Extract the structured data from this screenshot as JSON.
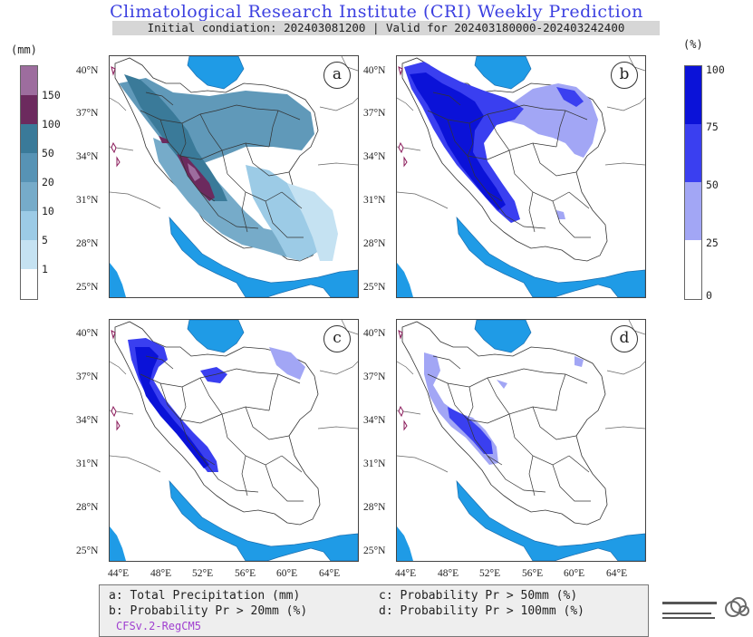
{
  "header": {
    "title": "Climatological Research Institute (CRI) Weekly Prediction",
    "subtitle": "Initial condiation: 202403081200 | Valid for 202403180000-202403242400"
  },
  "left_colorbar": {
    "unit": "(mm)",
    "ticks": [
      "150",
      "100",
      "50",
      "20",
      "10",
      "5",
      "1"
    ],
    "colors": [
      "#9d6d9e",
      "#6c2a5e",
      "#3a7a99",
      "#5793b5",
      "#76abc9",
      "#9ccbe6",
      "#c5e2f2",
      "#ffffff"
    ]
  },
  "right_colorbar": {
    "unit": "(%)",
    "ticks": [
      "100",
      "75",
      "50",
      "25",
      "0"
    ],
    "colors": [
      "#0b12d8",
      "#3a3ff0",
      "#a2a6f5",
      "#ffffff"
    ]
  },
  "panels": [
    {
      "letter": "a",
      "variable": "Total Precipitation (mm)"
    },
    {
      "letter": "b",
      "variable": "Probability Pr > 20mm (%)"
    },
    {
      "letter": "c",
      "variable": "Probability Pr > 50mm (%)"
    },
    {
      "letter": "d",
      "variable": "Probability Pr > 100mm (%)"
    }
  ],
  "axes": {
    "lat_labels": [
      "40°N",
      "37°N",
      "34°N",
      "31°N",
      "28°N",
      "25°N"
    ],
    "lon_labels": [
      "44°E",
      "48°E",
      "52°E",
      "56°E",
      "60°E",
      "64°E"
    ]
  },
  "legend": {
    "a": "a: Total Precipitation (mm)",
    "b": "b: Probability Pr > 20mm (%)",
    "c": "c: Probability Pr > 50mm (%)",
    "d": "d: Probability Pr > 100mm (%)",
    "model": "CFSv.2-RegCM5"
  },
  "colors": {
    "sea": "#1f9be6",
    "title": "#3b3fe0",
    "model_label": "#a040d0"
  }
}
